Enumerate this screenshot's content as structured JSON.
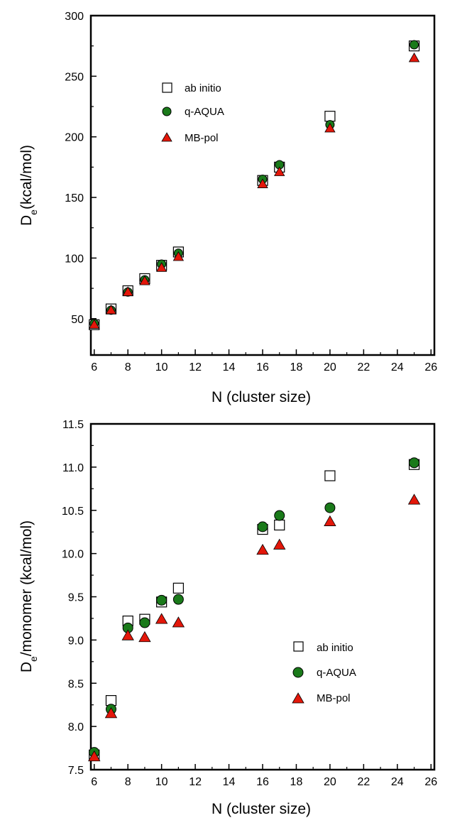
{
  "chart_data": [
    {
      "type": "scatter",
      "title": "",
      "xlabel": "N (cluster size)",
      "ylabel_main": "D",
      "ylabel_sub": "e",
      "ylabel_rest": "(kcal/mol)",
      "xlim": [
        5.8,
        26.2
      ],
      "ylim": [
        20,
        300
      ],
      "xticks": [
        "6",
        "8",
        "10",
        "12",
        "14",
        "16",
        "18",
        "20",
        "22",
        "24",
        "26"
      ],
      "yticks": [
        "50",
        "100",
        "150",
        "200",
        "250",
        "300"
      ],
      "legend_position": "top-left",
      "series": [
        {
          "name": "ab initio",
          "marker": "square",
          "color": "#ffffff",
          "x": [
            6,
            7,
            8,
            9,
            10,
            11,
            16,
            17,
            20,
            25
          ],
          "y": [
            45,
            58,
            73,
            83,
            94,
            105,
            164,
            175,
            217,
            275
          ]
        },
        {
          "name": "q-AQUA",
          "marker": "circle",
          "color": "#1a7a1a",
          "x": [
            6,
            7,
            8,
            9,
            10,
            11,
            16,
            17,
            20,
            25
          ],
          "y": [
            46,
            57,
            72,
            82,
            95,
            104,
            165,
            177,
            210,
            276
          ]
        },
        {
          "name": "MB-pol",
          "marker": "triangle",
          "color": "#e3170a",
          "x": [
            6,
            7,
            8,
            9,
            10,
            11,
            16,
            17,
            20,
            25
          ],
          "y": [
            45,
            57,
            72,
            81,
            92,
            101,
            161,
            171,
            207,
            265
          ]
        }
      ]
    },
    {
      "type": "scatter",
      "title": "",
      "xlabel": "N (cluster size)",
      "ylabel_main": "D",
      "ylabel_sub": "e",
      "ylabel_rest": "/monomer (kcal/mol)",
      "xlim": [
        5.8,
        26.2
      ],
      "ylim": [
        7.5,
        11.5
      ],
      "xticks": [
        "6",
        "8",
        "10",
        "12",
        "14",
        "16",
        "18",
        "20",
        "22",
        "24",
        "26"
      ],
      "yticks": [
        "7.5",
        "8.0",
        "8.5",
        "9.0",
        "9.5",
        "10.0",
        "10.5",
        "11.0",
        "11.5"
      ],
      "legend_position": "bottom-right",
      "series": [
        {
          "name": "ab initio",
          "marker": "square",
          "color": "#ffffff",
          "x": [
            6,
            7,
            8,
            9,
            10,
            11,
            16,
            17,
            20,
            25
          ],
          "y": [
            7.67,
            8.3,
            9.22,
            9.24,
            9.44,
            9.6,
            10.28,
            10.33,
            10.9,
            11.03
          ]
        },
        {
          "name": "q-AQUA",
          "marker": "circle",
          "color": "#1a7a1a",
          "x": [
            6,
            7,
            8,
            9,
            10,
            11,
            16,
            17,
            20,
            25
          ],
          "y": [
            7.7,
            8.2,
            9.14,
            9.2,
            9.46,
            9.47,
            10.31,
            10.44,
            10.53,
            11.05
          ]
        },
        {
          "name": "MB-pol",
          "marker": "triangle",
          "color": "#e3170a",
          "x": [
            6,
            7,
            8,
            9,
            10,
            11,
            16,
            17,
            20,
            25
          ],
          "y": [
            7.65,
            8.15,
            9.05,
            9.03,
            9.24,
            9.2,
            10.04,
            10.1,
            10.37,
            10.62
          ]
        }
      ]
    }
  ]
}
